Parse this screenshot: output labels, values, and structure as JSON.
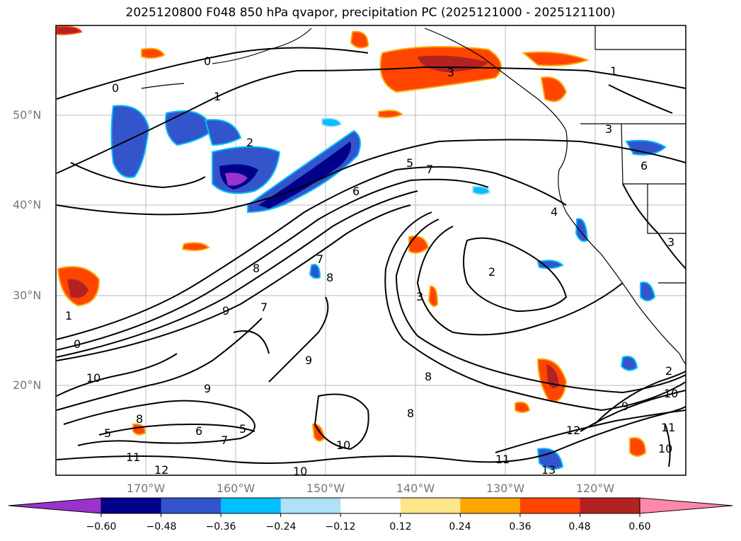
{
  "title": "2025120800 F048 850 hPa qvapor, precipitation PC (2025121000 - 2025121100)",
  "lat_labels": [
    "50°N",
    "40°N",
    "30°N",
    "20°N"
  ],
  "lon_labels": [
    "170°W",
    "160°W",
    "150°W",
    "140°W",
    "130°W",
    "120°W"
  ],
  "colorbar": {
    "ticks": [
      "−0.60",
      "−0.48",
      "−0.36",
      "−0.24",
      "−0.12",
      "0.12",
      "0.24",
      "0.36",
      "0.48",
      "0.60"
    ],
    "colors": [
      "#9933cc",
      "#00008b",
      "#3355cc",
      "#00bfff",
      "#aee0f8",
      "#ffffff",
      "#fde68a",
      "#ffa500",
      "#ff4500",
      "#b22222",
      "#ff88aa"
    ]
  },
  "contour_labels": [
    "0",
    "1",
    "0",
    "2",
    "5",
    "7",
    "6",
    "3",
    "1",
    "3",
    "6",
    "4",
    "3",
    "2",
    "3",
    "8",
    "7",
    "8",
    "9",
    "7",
    "1",
    "0",
    "10",
    "9",
    "8",
    "9",
    "8",
    "8",
    "5",
    "6",
    "7",
    "5",
    "11",
    "12",
    "10",
    "10",
    "12",
    "11",
    "13",
    "9",
    "10",
    "2",
    "10",
    "11"
  ]
}
